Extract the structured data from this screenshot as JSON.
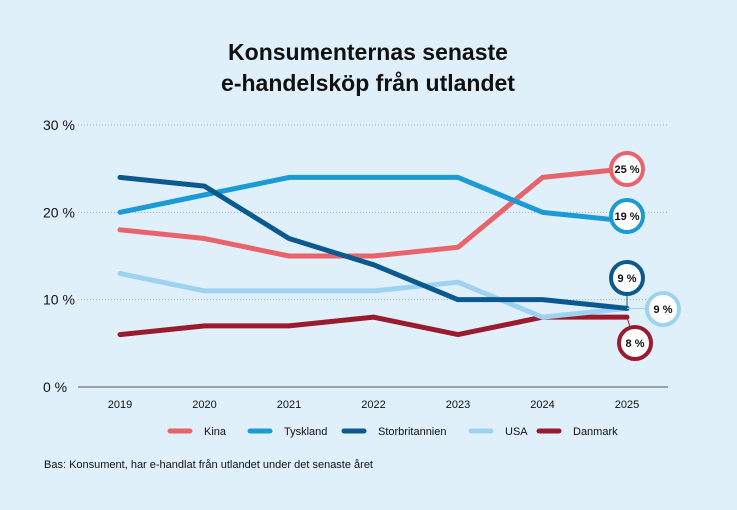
{
  "chart_data": {
    "type": "line",
    "title_lines": [
      "Konsumenternas senaste",
      "e-handelsköp från utlandet"
    ],
    "x": [
      "2019",
      "2020",
      "2021",
      "2022",
      "2023",
      "2024",
      "2025"
    ],
    "ylim": [
      0,
      30
    ],
    "yticks": [
      0,
      10,
      20,
      30
    ],
    "ytick_labels": [
      "0 %",
      "10 %",
      "20 %",
      "30 %"
    ],
    "grid": true,
    "legend_position": "bottom",
    "series": [
      {
        "name": "Kina",
        "color": "#e8646a",
        "values": [
          18,
          17,
          15,
          15,
          16,
          24,
          25
        ],
        "end_label": "25 %"
      },
      {
        "name": "Tyskland",
        "color": "#1a9bd6",
        "values": [
          20,
          22,
          24,
          24,
          24,
          20,
          19
        ],
        "end_label": "19 %"
      },
      {
        "name": "Storbritannien",
        "color": "#0b5a8f",
        "values": [
          24,
          23,
          17,
          14,
          10,
          10,
          9
        ],
        "end_label": "9 %"
      },
      {
        "name": "USA",
        "color": "#9dd3f0",
        "values": [
          13,
          11,
          11,
          11,
          12,
          8,
          9
        ],
        "end_label": "9 %"
      },
      {
        "name": "Danmark",
        "color": "#9b1b2e",
        "values": [
          6,
          7,
          7,
          8,
          6,
          8,
          8
        ],
        "end_label": "8 %"
      }
    ],
    "footnote": "Bas: Konsument, har e-handlat från utlandet under det senaste året"
  }
}
